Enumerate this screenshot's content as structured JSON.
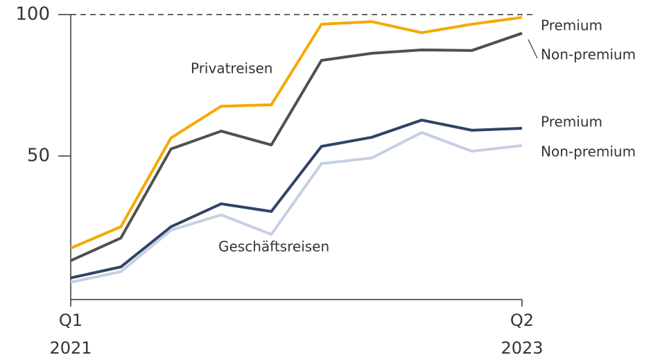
{
  "chart_data": {
    "type": "line",
    "categories": [
      "Q1\n2021",
      null,
      null,
      null,
      null,
      null,
      null,
      null,
      null,
      "Q2\n2023"
    ],
    "series": [
      {
        "name": "Premium",
        "color": "#f5a800",
        "values": [
          17.4,
          25,
          56.4,
          67.6,
          68.1,
          96.6,
          97.5,
          93.6,
          96.6,
          99
        ]
      },
      {
        "name": "Non-premium",
        "color": "#505050",
        "values": [
          13,
          21,
          52.5,
          58.8,
          53.9,
          83.8,
          86.3,
          87.5,
          87.3,
          93.4
        ]
      },
      {
        "name": "Premium",
        "color": "#2e4466",
        "values": [
          6.9,
          10.8,
          25,
          33.1,
          30.4,
          53.4,
          56.6,
          62.7,
          59.1,
          59.8
        ]
      },
      {
        "name": "Non-premium",
        "color": "#c5d0e0",
        "values": [
          5.4,
          9.1,
          23.8,
          29.2,
          22.3,
          47.3,
          49.3,
          58.3,
          51.7,
          53.7
        ]
      }
    ],
    "annotations": [
      "Privatreisen",
      "Geschäftsreisen"
    ],
    "ylim": [
      0,
      100
    ],
    "yticks": [
      50,
      100
    ],
    "grid": false
  }
}
